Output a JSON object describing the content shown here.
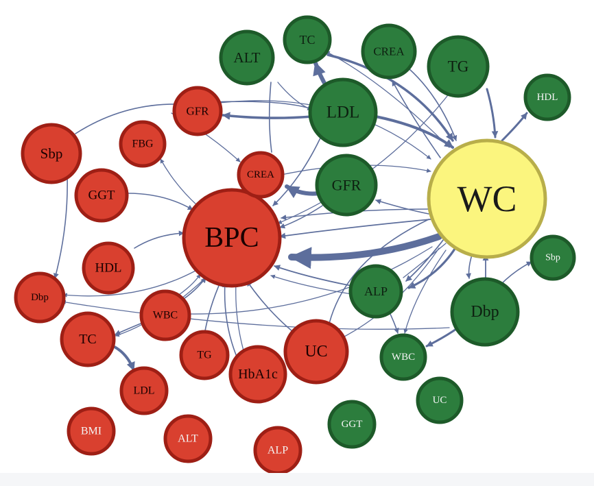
{
  "colors": {
    "red_fill": "#d9402f",
    "red_stroke": "#9e1f15",
    "green_fill": "#2c7d3d",
    "green_stroke": "#1d5a29",
    "yellow_fill": "#fbf57e",
    "yellow_stroke": "#b8ae4a",
    "edge": "#5d6e9c"
  },
  "nodes": [
    {
      "id": "bpc",
      "label": "BPC",
      "group": "red"
    },
    {
      "id": "wc",
      "label": "WC",
      "group": "yellow"
    },
    {
      "id": "r_sbp",
      "label": "Sbp",
      "group": "red"
    },
    {
      "id": "r_gfr",
      "label": "GFR",
      "group": "red"
    },
    {
      "id": "r_fbg",
      "label": "FBG",
      "group": "red"
    },
    {
      "id": "r_crea",
      "label": "CREA",
      "group": "red"
    },
    {
      "id": "r_ggt",
      "label": "GGT",
      "group": "red"
    },
    {
      "id": "r_hdl",
      "label": "HDL",
      "group": "red"
    },
    {
      "id": "r_dbp",
      "label": "Dbp",
      "group": "red"
    },
    {
      "id": "r_wbc",
      "label": "WBC",
      "group": "red"
    },
    {
      "id": "r_tc",
      "label": "TC",
      "group": "red"
    },
    {
      "id": "r_tg",
      "label": "TG",
      "group": "red"
    },
    {
      "id": "r_hba1c",
      "label": "HbA1c",
      "group": "red"
    },
    {
      "id": "r_uc",
      "label": "UC",
      "group": "red"
    },
    {
      "id": "r_ldl",
      "label": "LDL",
      "group": "red"
    },
    {
      "id": "r_bmi",
      "label": "BMI",
      "group": "red"
    },
    {
      "id": "r_alt",
      "label": "ALT",
      "group": "red"
    },
    {
      "id": "r_alp",
      "label": "ALP",
      "group": "red"
    },
    {
      "id": "g_alt",
      "label": "ALT",
      "group": "green"
    },
    {
      "id": "g_tc",
      "label": "TC",
      "group": "green"
    },
    {
      "id": "g_crea",
      "label": "CREA",
      "group": "green"
    },
    {
      "id": "g_tg",
      "label": "TG",
      "group": "green"
    },
    {
      "id": "g_ldl",
      "label": "LDL",
      "group": "green"
    },
    {
      "id": "g_hdl",
      "label": "HDL",
      "group": "green"
    },
    {
      "id": "g_gfr",
      "label": "GFR",
      "group": "green"
    },
    {
      "id": "g_sbp",
      "label": "Sbp",
      "group": "green"
    },
    {
      "id": "g_alp",
      "label": "ALP",
      "group": "green"
    },
    {
      "id": "g_dbp",
      "label": "Dbp",
      "group": "green"
    },
    {
      "id": "g_wbc",
      "label": "WBC",
      "group": "green"
    },
    {
      "id": "g_uc",
      "label": "UC",
      "group": "green"
    },
    {
      "id": "g_ggt",
      "label": "GGT",
      "group": "green"
    }
  ]
}
